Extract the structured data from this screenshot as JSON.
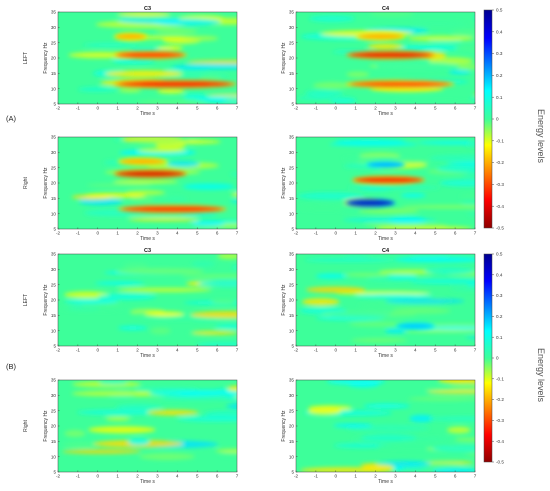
{
  "chart_data": {
    "type": "heatmap",
    "panels": [
      {
        "label": "(A)",
        "energy_label": "Energy levels",
        "colorbar_ticks": [
          "0.5",
          "0.4",
          "0.3",
          "0.2",
          "0.1",
          "0",
          "-0.1",
          "-0.2",
          "-0.3",
          "-0.4",
          "-0.5"
        ],
        "rows": [
          {
            "row_label": "LEFT",
            "plots": [
              {
                "title": "C3",
                "xlabel": "Time s",
                "ylabel": "Frequency Hz",
                "bands": [
                  {
                    "f": 27,
                    "t0": 0.8,
                    "t1": 2.5,
                    "v": -0.2
                  },
                  {
                    "f": 21,
                    "t0": 0.8,
                    "t1": 4.5,
                    "v": -0.33
                  },
                  {
                    "f": 11.5,
                    "t0": 0.8,
                    "t1": 7.0,
                    "v": -0.38
                  }
                ]
              },
              {
                "title": "C4",
                "xlabel": "Time s",
                "ylabel": "Frequency Hz",
                "bands": [
                  {
                    "f": 27,
                    "t0": 1.0,
                    "t1": 3.5,
                    "v": -0.2
                  },
                  {
                    "f": 21,
                    "t0": 0.5,
                    "t1": 5.0,
                    "v": -0.4
                  },
                  {
                    "f": 11.5,
                    "t0": 0.5,
                    "t1": 6.0,
                    "v": -0.3
                  }
                ]
              }
            ]
          },
          {
            "row_label": "Right",
            "plots": [
              {
                "title": "",
                "xlabel": "Time s",
                "ylabel": "Frequency Hz",
                "bands": [
                  {
                    "f": 23,
                    "t0": 0.8,
                    "t1": 4.5,
                    "v": -0.42
                  },
                  {
                    "f": 27,
                    "t0": 1.0,
                    "t1": 3.5,
                    "v": -0.2
                  },
                  {
                    "f": 11.5,
                    "t0": 1.0,
                    "t1": 6.5,
                    "v": -0.35
                  }
                ]
              },
              {
                "title": "",
                "xlabel": "Time s",
                "ylabel": "Frequency Hz",
                "bands": [
                  {
                    "f": 21,
                    "t0": 0.8,
                    "t1": 4.5,
                    "v": -0.38
                  },
                  {
                    "f": 13.5,
                    "t0": 0.5,
                    "t1": 3.0,
                    "v": 0.45
                  },
                  {
                    "f": 26,
                    "t0": 1.5,
                    "t1": 3.5,
                    "v": 0.2
                  }
                ]
              }
            ]
          }
        ]
      },
      {
        "label": "(B)",
        "energy_label": "Energy levels",
        "colorbar_ticks": [
          "0.5",
          "0.4",
          "0.3",
          "0.2",
          "0.1",
          "0",
          "-0.1",
          "-0.2",
          "-0.3",
          "-0.4",
          "-0.5"
        ],
        "rows": [
          {
            "row_label": "LEFT",
            "plots": [
              {
                "title": "C3",
                "xlabel": "Time s",
                "ylabel": "Frequency Hz",
                "bands": []
              },
              {
                "title": "C4",
                "xlabel": "Time s",
                "ylabel": "Frequency Hz",
                "bands": [
                  {
                    "f": 11.5,
                    "t0": 3.0,
                    "t1": 5.0,
                    "v": 0.18
                  }
                ]
              }
            ]
          },
          {
            "row_label": "Right",
            "plots": [
              {
                "title": "",
                "xlabel": "Time s",
                "ylabel": "Frequency Hz",
                "bands": []
              },
              {
                "title": "",
                "xlabel": "Time s",
                "ylabel": "Frequency Hz",
                "bands": []
              }
            ]
          }
        ]
      }
    ],
    "x_ticks": [
      "-2",
      "-1",
      "0",
      "1",
      "2",
      "3",
      "4",
      "5",
      "6",
      "7"
    ],
    "y_ticks": [
      "5",
      "10",
      "15",
      "20",
      "25",
      "30",
      "35"
    ],
    "xlim": [
      -2,
      7
    ],
    "ylim": [
      5,
      35
    ],
    "colormap": "jet (reversed: blue = 0.5, red = -0.5)",
    "zlim": [
      -0.5,
      0.5
    ],
    "grid": false
  }
}
